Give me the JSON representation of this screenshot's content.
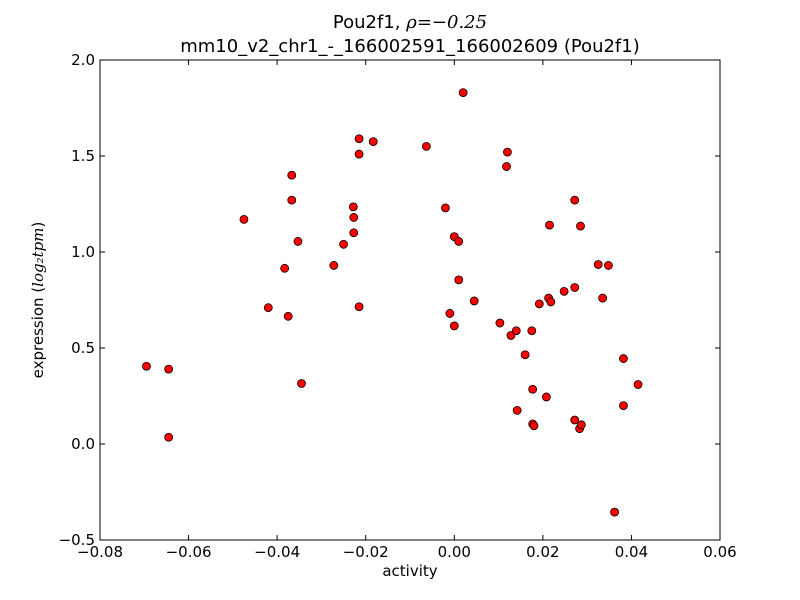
{
  "chart_data": {
    "type": "scatter",
    "title": "Pou2f1, ρ=−0.25",
    "title_main": "Pou2f1, ",
    "title_math": "ρ=−0.25",
    "subtitle": "mm10_v2_chr1_-_166002591_166002609 (Pou2f1)",
    "xlabel": "activity",
    "ylabel": "expression (log₂tpm)",
    "ylabel_text": "expression (",
    "ylabel_math": "log₂tpm",
    "ylabel_close": ")",
    "xlim": [
      -0.08,
      0.06
    ],
    "ylim": [
      -0.5,
      2.0
    ],
    "xticks": [
      -0.08,
      -0.06,
      -0.04,
      -0.02,
      0.0,
      0.02,
      0.04,
      0.06
    ],
    "xtick_labels": [
      "−0.08",
      "−0.06",
      "−0.04",
      "−0.02",
      "0.00",
      "0.02",
      "0.04",
      "0.06"
    ],
    "yticks": [
      -0.5,
      0.0,
      0.5,
      1.0,
      1.5,
      2.0
    ],
    "ytick_labels": [
      "−0.5",
      "0.0",
      "0.5",
      "1.0",
      "1.5",
      "2.0"
    ],
    "grid": false,
    "marker_color": "#ff0000",
    "marker_edge_color": "#000000",
    "points": [
      {
        "x": -0.0695,
        "y": 0.405
      },
      {
        "x": -0.0645,
        "y": 0.39
      },
      {
        "x": -0.0645,
        "y": 0.035
      },
      {
        "x": -0.0475,
        "y": 1.17
      },
      {
        "x": -0.042,
        "y": 0.71
      },
      {
        "x": -0.0383,
        "y": 0.915
      },
      {
        "x": -0.0375,
        "y": 0.665
      },
      {
        "x": -0.0367,
        "y": 1.4
      },
      {
        "x": -0.0367,
        "y": 1.27
      },
      {
        "x": -0.0353,
        "y": 1.055
      },
      {
        "x": -0.0345,
        "y": 0.315
      },
      {
        "x": -0.0272,
        "y": 0.93
      },
      {
        "x": -0.025,
        "y": 1.04
      },
      {
        "x": -0.0228,
        "y": 1.235
      },
      {
        "x": -0.0227,
        "y": 1.18
      },
      {
        "x": -0.0227,
        "y": 1.1
      },
      {
        "x": -0.0215,
        "y": 1.59
      },
      {
        "x": -0.0215,
        "y": 1.51
      },
      {
        "x": -0.0215,
        "y": 0.715
      },
      {
        "x": -0.0183,
        "y": 1.575
      },
      {
        "x": -0.0063,
        "y": 1.55
      },
      {
        "x": -0.002,
        "y": 1.23
      },
      {
        "x": -0.001,
        "y": 0.68
      },
      {
        "x": 0.0,
        "y": 1.08
      },
      {
        "x": 0.0,
        "y": 0.615
      },
      {
        "x": 0.001,
        "y": 1.055
      },
      {
        "x": 0.001,
        "y": 0.855
      },
      {
        "x": 0.002,
        "y": 1.83
      },
      {
        "x": 0.0045,
        "y": 0.745
      },
      {
        "x": 0.0103,
        "y": 0.63
      },
      {
        "x": 0.0118,
        "y": 1.445
      },
      {
        "x": 0.012,
        "y": 1.52
      },
      {
        "x": 0.0128,
        "y": 0.565
      },
      {
        "x": 0.014,
        "y": 0.59
      },
      {
        "x": 0.0142,
        "y": 0.175
      },
      {
        "x": 0.016,
        "y": 0.465
      },
      {
        "x": 0.0175,
        "y": 0.59
      },
      {
        "x": 0.0177,
        "y": 0.285
      },
      {
        "x": 0.0177,
        "y": 0.105
      },
      {
        "x": 0.018,
        "y": 0.095
      },
      {
        "x": 0.0192,
        "y": 0.73
      },
      {
        "x": 0.0208,
        "y": 0.245
      },
      {
        "x": 0.0213,
        "y": 0.76
      },
      {
        "x": 0.0215,
        "y": 1.14
      },
      {
        "x": 0.0218,
        "y": 0.74
      },
      {
        "x": 0.0248,
        "y": 0.795
      },
      {
        "x": 0.0272,
        "y": 1.27
      },
      {
        "x": 0.0272,
        "y": 0.815
      },
      {
        "x": 0.0272,
        "y": 0.125
      },
      {
        "x": 0.0283,
        "y": 0.08
      },
      {
        "x": 0.0285,
        "y": 1.135
      },
      {
        "x": 0.0287,
        "y": 0.1
      },
      {
        "x": 0.0325,
        "y": 0.935
      },
      {
        "x": 0.0335,
        "y": 0.76
      },
      {
        "x": 0.0348,
        "y": 0.93
      },
      {
        "x": 0.0362,
        "y": -0.355
      },
      {
        "x": 0.0382,
        "y": 0.445
      },
      {
        "x": 0.0382,
        "y": 0.2
      },
      {
        "x": 0.0415,
        "y": 0.31
      }
    ]
  }
}
